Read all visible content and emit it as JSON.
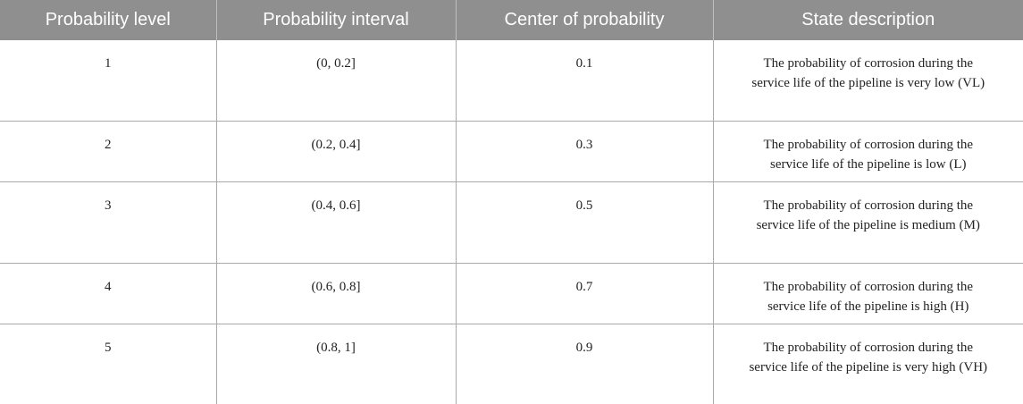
{
  "table": {
    "headers": [
      "Probability level",
      "Probability interval",
      "Center of probability",
      "State description"
    ],
    "rows": [
      {
        "level": "1",
        "interval": "(0, 0.2]",
        "center": "0.1",
        "description": "The probability of corrosion during the service life of the pipeline is very low (VL)"
      },
      {
        "level": "2",
        "interval": "(0.2, 0.4]",
        "center": "0.3",
        "description": "The probability of corrosion during the service life of the pipeline is low (L)"
      },
      {
        "level": "3",
        "interval": "(0.4, 0.6]",
        "center": "0.5",
        "description": "The probability of corrosion during the service life of the pipeline is medium (M)"
      },
      {
        "level": "4",
        "interval": "(0.6, 0.8]",
        "center": "0.7",
        "description": "The probability of corrosion during the service life of the pipeline is high (H)"
      },
      {
        "level": "5",
        "interval": "(0.8, 1]",
        "center": "0.9",
        "description": "The probability of corrosion during the service life of the pipeline is very high (VH)"
      }
    ]
  },
  "colors": {
    "header_background": "#8f8f8f",
    "header_text": "#ffffff",
    "grid_lines": "#a9a9a9",
    "body_text": "#222222"
  }
}
